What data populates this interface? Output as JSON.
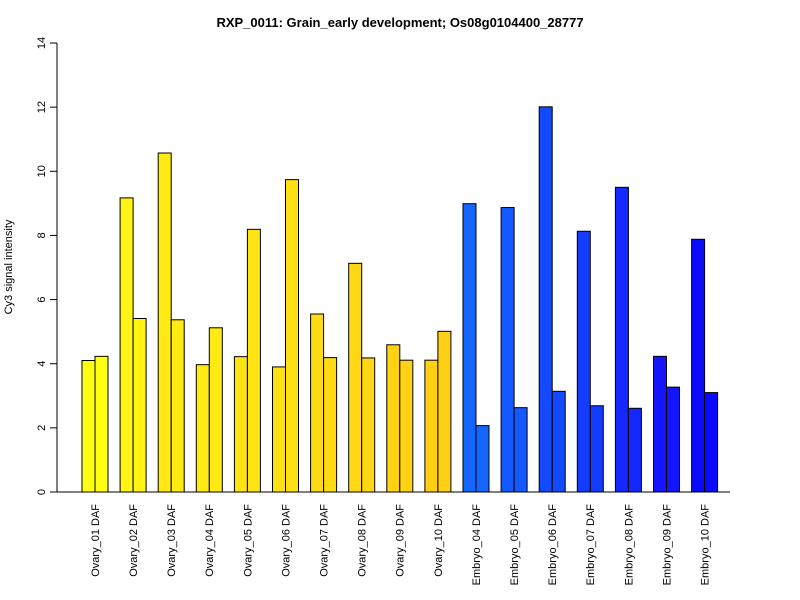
{
  "chart_data": {
    "type": "bar",
    "title": "RXP_0011: Grain_early development; Os08g0104400_28777",
    "xlabel": "",
    "ylabel": "Cy3 signal intensity",
    "ylim": [
      0,
      14
    ],
    "yticks": [
      "0",
      "2",
      "4",
      "6",
      "8",
      "10",
      "12",
      "14"
    ],
    "grid": false,
    "legend": "none",
    "categories": [
      "Ovary_01 DAF",
      "Ovary_02 DAF",
      "Ovary_03 DAF",
      "Ovary_04 DAF",
      "Ovary_05 DAF",
      "Ovary_06 DAF",
      "Ovary_07 DAF",
      "Ovary_08 DAF",
      "Ovary_09 DAF",
      "Ovary_10 DAF",
      "Embryo_04 DAF",
      "Embryo_05 DAF",
      "Embryo_06 DAF",
      "Embryo_07 DAF",
      "Embryo_08 DAF",
      "Embryo_09 DAF",
      "Embryo_10 DAF"
    ],
    "series": [
      {
        "values": [
          4.1,
          9.17,
          10.57,
          3.97,
          4.22,
          3.9,
          5.55,
          7.13,
          4.59,
          4.11,
          8.99,
          8.87,
          12.01,
          8.13,
          9.5,
          4.23,
          7.88
        ]
      },
      {
        "values": [
          4.23,
          5.41,
          5.37,
          5.12,
          8.19,
          9.74,
          4.19,
          4.18,
          4.11,
          5.01,
          2.07,
          2.63,
          3.14,
          2.69,
          2.61,
          3.27,
          3.1
        ]
      }
    ],
    "colors": [
      "#FFFF14",
      "#FFF414",
      "#FFEA14",
      "#FFEA14",
      "#FFE414",
      "#FFE014",
      "#FFDB14",
      "#FFD714",
      "#FFD314",
      "#FFCF14",
      "#1466FF",
      "#1458FF",
      "#144AFF",
      "#143CFF",
      "#1428FF",
      "#1414FF",
      "#0A0AFF"
    ]
  }
}
